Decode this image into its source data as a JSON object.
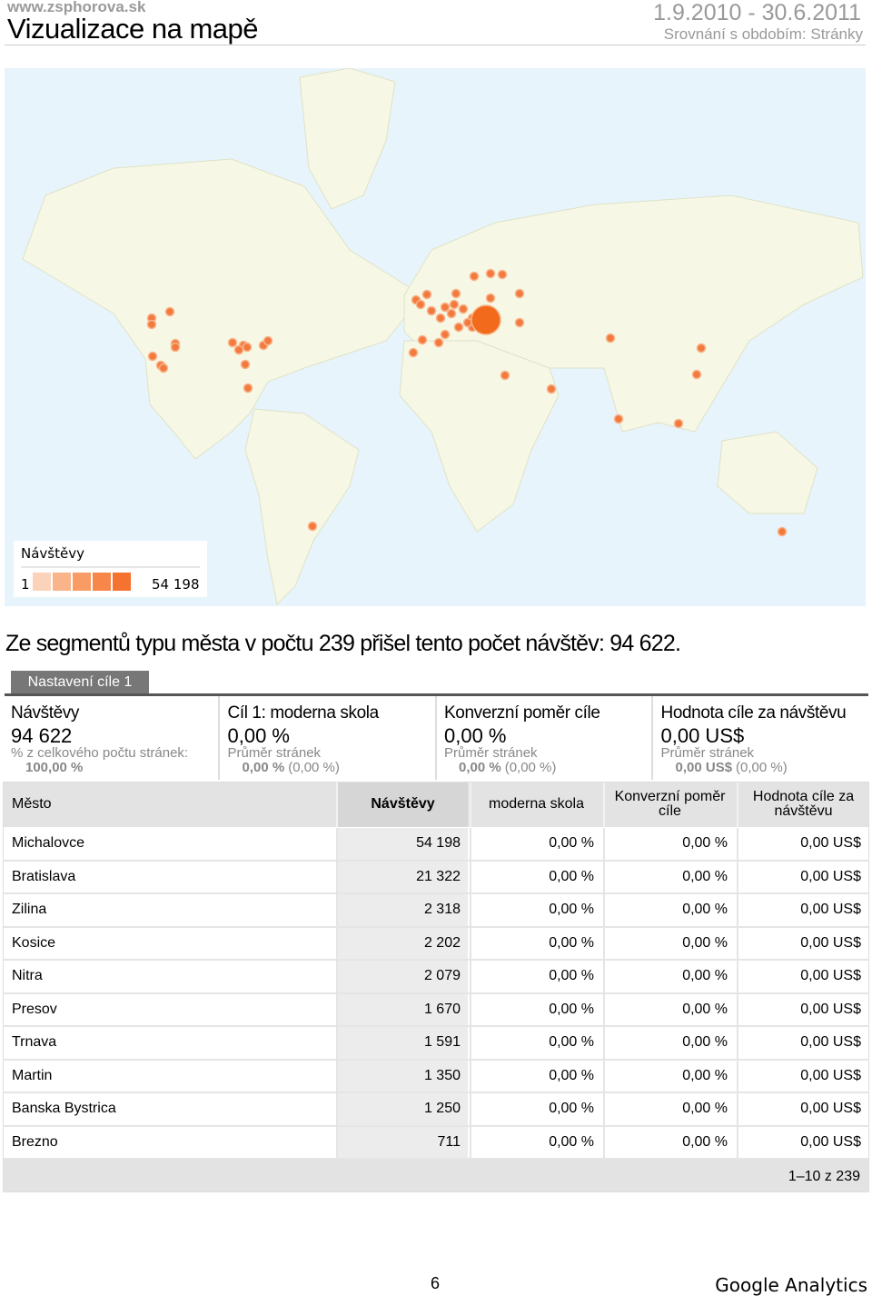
{
  "header": {
    "site": "www.zsphorova.sk",
    "title": "Vizualizace na mapě",
    "date_range": "1.9.2010 - 30.6.2011",
    "comparison": "Srovnání s obdobím: Stránky"
  },
  "map_legend": {
    "title": "Návštěvy",
    "min": "1",
    "max": "54 198"
  },
  "summary": "Ze segmentů typu města v počtu 239 přišel tento počet návštěv: 94 622.",
  "tab": "Nastavení cíle 1",
  "metrics": [
    {
      "label": "Návštěvy",
      "value": "94 622",
      "sub": "% z celkového počtu stránek:",
      "sub_value": "100,00 %"
    },
    {
      "label": "Cíl 1: moderna skola",
      "value": "0,00 %",
      "sub": "Průměr stránek",
      "sub_value": "0,00 %",
      "sub_extra": "(0,00 %)"
    },
    {
      "label": "Konverzní poměr cíle",
      "value": "0,00 %",
      "sub": "Průměr stránek",
      "sub_value": "0,00 %",
      "sub_extra": "(0,00 %)"
    },
    {
      "label": "Hodnota cíle za návštěvu",
      "value": "0,00 US$",
      "sub": "Průměr stránek",
      "sub_value": "0,00 US$",
      "sub_extra": "(0,00 %)"
    }
  ],
  "table": {
    "columns": [
      "Město",
      "Návštěvy",
      "moderna skola",
      "Konverzní poměr cíle",
      "Hodnota cíle za návštěvu"
    ],
    "rows": [
      [
        "Michalovce",
        "54 198",
        "0,00 %",
        "0,00 %",
        "0,00 US$"
      ],
      [
        "Bratislava",
        "21 322",
        "0,00 %",
        "0,00 %",
        "0,00 US$"
      ],
      [
        "Zilina",
        "2 318",
        "0,00 %",
        "0,00 %",
        "0,00 US$"
      ],
      [
        "Kosice",
        "2 202",
        "0,00 %",
        "0,00 %",
        "0,00 US$"
      ],
      [
        "Nitra",
        "2 079",
        "0,00 %",
        "0,00 %",
        "0,00 US$"
      ],
      [
        "Presov",
        "1 670",
        "0,00 %",
        "0,00 %",
        "0,00 US$"
      ],
      [
        "Trnava",
        "1 591",
        "0,00 %",
        "0,00 %",
        "0,00 US$"
      ],
      [
        "Martin",
        "1 350",
        "0,00 %",
        "0,00 %",
        "0,00 US$"
      ],
      [
        "Banska Bystrica",
        "1 250",
        "0,00 %",
        "0,00 %",
        "0,00 US$"
      ],
      [
        "Brezno",
        "711",
        "0,00 %",
        "0,00 %",
        "0,00 US$"
      ]
    ],
    "pagination": "1–10 z 239"
  },
  "footer": {
    "page": "6",
    "brand": "Google Analytics"
  }
}
